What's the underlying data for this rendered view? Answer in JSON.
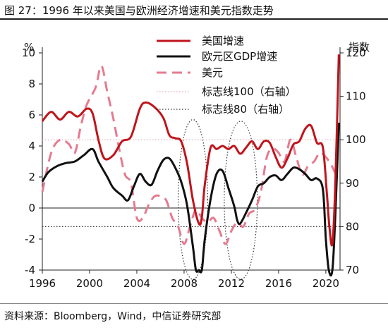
{
  "title": "图 27：1996 年以来美国与欧洲经济增速和美元指数走势",
  "source": "资料来源：Bloomberg，Wind，中信证券研究部",
  "chart_data": {
    "type": "line",
    "x_ticks": [
      "1996",
      "2000",
      "2004",
      "2008",
      "2012",
      "2016",
      "2020"
    ],
    "y_left": {
      "label": "%",
      "ticks": [
        "-4",
        "-2",
        "0",
        "2",
        "4",
        "6",
        "8",
        "10"
      ],
      "range": [
        -4,
        10
      ]
    },
    "y_right": {
      "label": "指数",
      "ticks": [
        "70",
        "80",
        "90",
        "100",
        "110",
        "120"
      ],
      "range": [
        70,
        120
      ]
    },
    "xlim": [
      1996,
      2021.2
    ],
    "series": [
      {
        "name": "美国增速",
        "axis": "left",
        "color": "#C0141C",
        "style": "solid",
        "x": [
          1996,
          1996.75,
          1997.5,
          1998.25,
          1999,
          1999.75,
          2000.25,
          2000.75,
          2001.25,
          2002,
          2002.75,
          2003.5,
          2004.25,
          2004.75,
          2005.5,
          2006.25,
          2006.75,
          2007.25,
          2007.75,
          2008.25,
          2008.75,
          2009.25,
          2009.5,
          2009.75,
          2010.25,
          2010.75,
          2011.25,
          2011.75,
          2012.25,
          2012.75,
          2013.25,
          2013.75,
          2014.25,
          2014.75,
          2015.25,
          2015.75,
          2016.25,
          2016.75,
          2017.25,
          2017.75,
          2018.25,
          2018.75,
          2019.25,
          2019.75,
          2020.1,
          2020.3,
          2020.55,
          2020.8,
          2021.1
        ],
        "y": [
          5.6,
          6.2,
          5.7,
          6.2,
          5.9,
          6.4,
          6.1,
          4.4,
          3.2,
          3.4,
          4.3,
          4.6,
          6.4,
          6.8,
          6.5,
          5.8,
          4.7,
          4.5,
          4.3,
          2.9,
          0.5,
          -1.0,
          -0.6,
          1.5,
          3.9,
          3.8,
          4.0,
          3.8,
          4.0,
          3.5,
          3.9,
          4.3,
          3.8,
          4.3,
          4.2,
          3.3,
          2.6,
          3.2,
          4.1,
          4.3,
          5.1,
          5.3,
          4.2,
          3.9,
          0.8,
          -1.2,
          -2.3,
          1.5,
          9.9
        ]
      },
      {
        "name": "欧元区GDP增速",
        "axis": "left",
        "color": "#111111",
        "style": "solid",
        "x": [
          1996,
          1996.5,
          1997.25,
          1998,
          1998.75,
          1999.5,
          2000.25,
          2000.75,
          2001.5,
          2002,
          2002.75,
          2003.25,
          2003.75,
          2004.25,
          2004.75,
          2005.25,
          2005.75,
          2006.25,
          2006.75,
          2007.25,
          2007.75,
          2008.25,
          2008.75,
          2009.0,
          2009.25,
          2009.5,
          2009.75,
          2010.25,
          2010.75,
          2011.25,
          2011.75,
          2012.25,
          2012.5,
          2012.75,
          2013.25,
          2013.75,
          2014.25,
          2014.75,
          2015.25,
          2015.75,
          2016.25,
          2016.75,
          2017.25,
          2017.75,
          2018.25,
          2018.75,
          2019.25,
          2019.75,
          2020.0,
          2020.25,
          2020.55,
          2020.8,
          2021.1
        ],
        "y": [
          1.7,
          2.3,
          2.7,
          2.9,
          3.0,
          3.4,
          3.8,
          3.0,
          2.0,
          1.3,
          0.8,
          0.5,
          1.4,
          2.2,
          1.7,
          1.5,
          2.4,
          3.1,
          3.2,
          2.6,
          1.7,
          0.2,
          -2.5,
          -4.0,
          -4.0,
          -4.0,
          -2.0,
          0.6,
          2.2,
          2.4,
          1.3,
          0.1,
          -0.8,
          -1.0,
          -0.3,
          0.5,
          1.4,
          1.6,
          2.0,
          2.1,
          1.8,
          2.2,
          2.6,
          2.5,
          2.2,
          1.8,
          1.9,
          1.2,
          -2.0,
          -4.0,
          -4.0,
          -0.5,
          5.5
        ]
      },
      {
        "name": "美元",
        "axis": "right",
        "color": "#E57B8F",
        "style": "dash",
        "x": [
          1996,
          1996.75,
          1997.5,
          1998.25,
          1998.75,
          1999.25,
          1999.75,
          2000.5,
          2001.0,
          2001.5,
          2002.0,
          2002.5,
          2003.0,
          2003.5,
          2004.0,
          2004.5,
          2005.0,
          2005.5,
          2006.0,
          2006.5,
          2007.0,
          2007.5,
          2008.0,
          2008.5,
          2009.0,
          2009.5,
          2010.0,
          2010.5,
          2011.0,
          2011.5,
          2012.0,
          2012.5,
          2013.0,
          2013.5,
          2014.0,
          2014.5,
          2015.0,
          2015.5,
          2016.0,
          2016.5,
          2017.0,
          2017.5,
          2018.0,
          2018.5,
          2019.0,
          2019.5,
          2020.0,
          2020.5,
          2021.0
        ],
        "y": [
          88,
          97,
          100,
          99,
          97,
          103,
          108,
          112,
          117,
          111,
          105,
          98,
          92,
          90,
          82,
          82,
          85,
          87,
          87,
          86,
          82,
          80,
          76,
          80,
          84,
          82,
          81,
          82,
          79,
          76,
          79,
          81,
          80,
          83,
          84,
          88,
          96,
          98,
          97,
          95,
          100,
          96,
          92,
          94,
          95,
          97,
          96,
          94,
          91
        ]
      },
      {
        "name": "标志线100（右轴）",
        "axis": "right",
        "color": "#E8A7B0",
        "style": "dot",
        "x": [
          1996,
          2021.2
        ],
        "y": [
          100,
          100
        ]
      },
      {
        "name": "标志线80（右轴）",
        "axis": "right",
        "color": "#333333",
        "style": "dot",
        "x": [
          1996,
          2021.2
        ],
        "y": [
          80,
          80
        ]
      }
    ],
    "annotations": [
      {
        "type": "ellipse",
        "x_range": [
          2007.5,
          2010.0
        ],
        "y_range": [
          -4.6,
          5.7
        ],
        "color": "#333333",
        "style": "dot"
      },
      {
        "type": "ellipse",
        "x_range": [
          2011.4,
          2014.2
        ],
        "y_range": [
          -4.6,
          5.6
        ],
        "color": "#333333",
        "style": "dot"
      }
    ]
  }
}
